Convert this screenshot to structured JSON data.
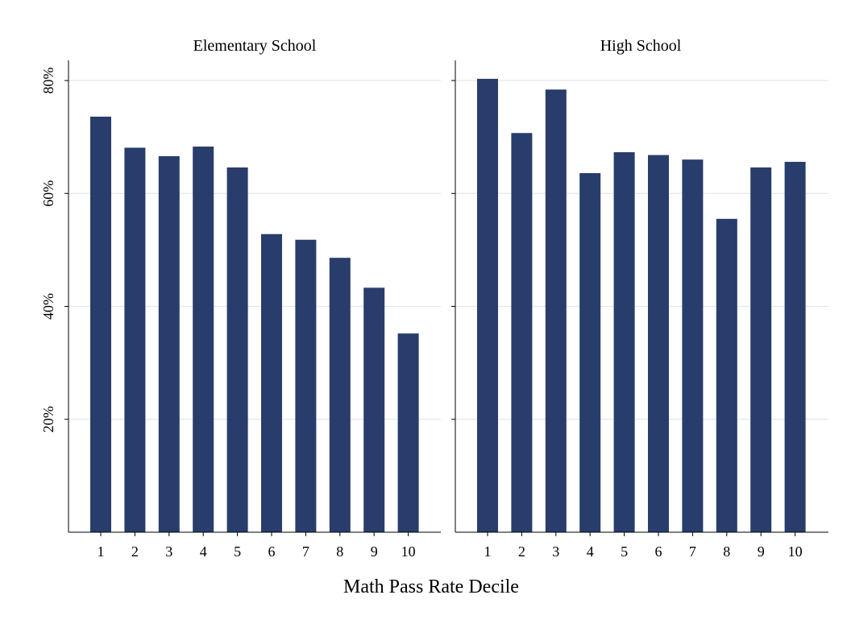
{
  "chart_data": {
    "type": "bar",
    "xlabel": "Math Pass Rate Decile",
    "ylabel": "",
    "ylim": [
      0,
      0.8
    ],
    "y_ticks": [
      0.2,
      0.4,
      0.6,
      0.8
    ],
    "y_tick_labels": [
      "20%",
      "40%",
      "60%",
      "80%"
    ],
    "grid": true,
    "categories": [
      "1",
      "2",
      "3",
      "4",
      "5",
      "6",
      "7",
      "8",
      "9",
      "10"
    ],
    "bar_color": "#283d6b",
    "gridline_color": "#e3e7ef",
    "panels": [
      {
        "title": "Elementary School",
        "values": [
          0.736,
          0.681,
          0.666,
          0.683,
          0.646,
          0.528,
          0.518,
          0.486,
          0.433,
          0.352
        ]
      },
      {
        "title": "High School",
        "values": [
          0.803,
          0.707,
          0.784,
          0.636,
          0.673,
          0.668,
          0.66,
          0.555,
          0.646,
          0.656
        ]
      }
    ]
  }
}
